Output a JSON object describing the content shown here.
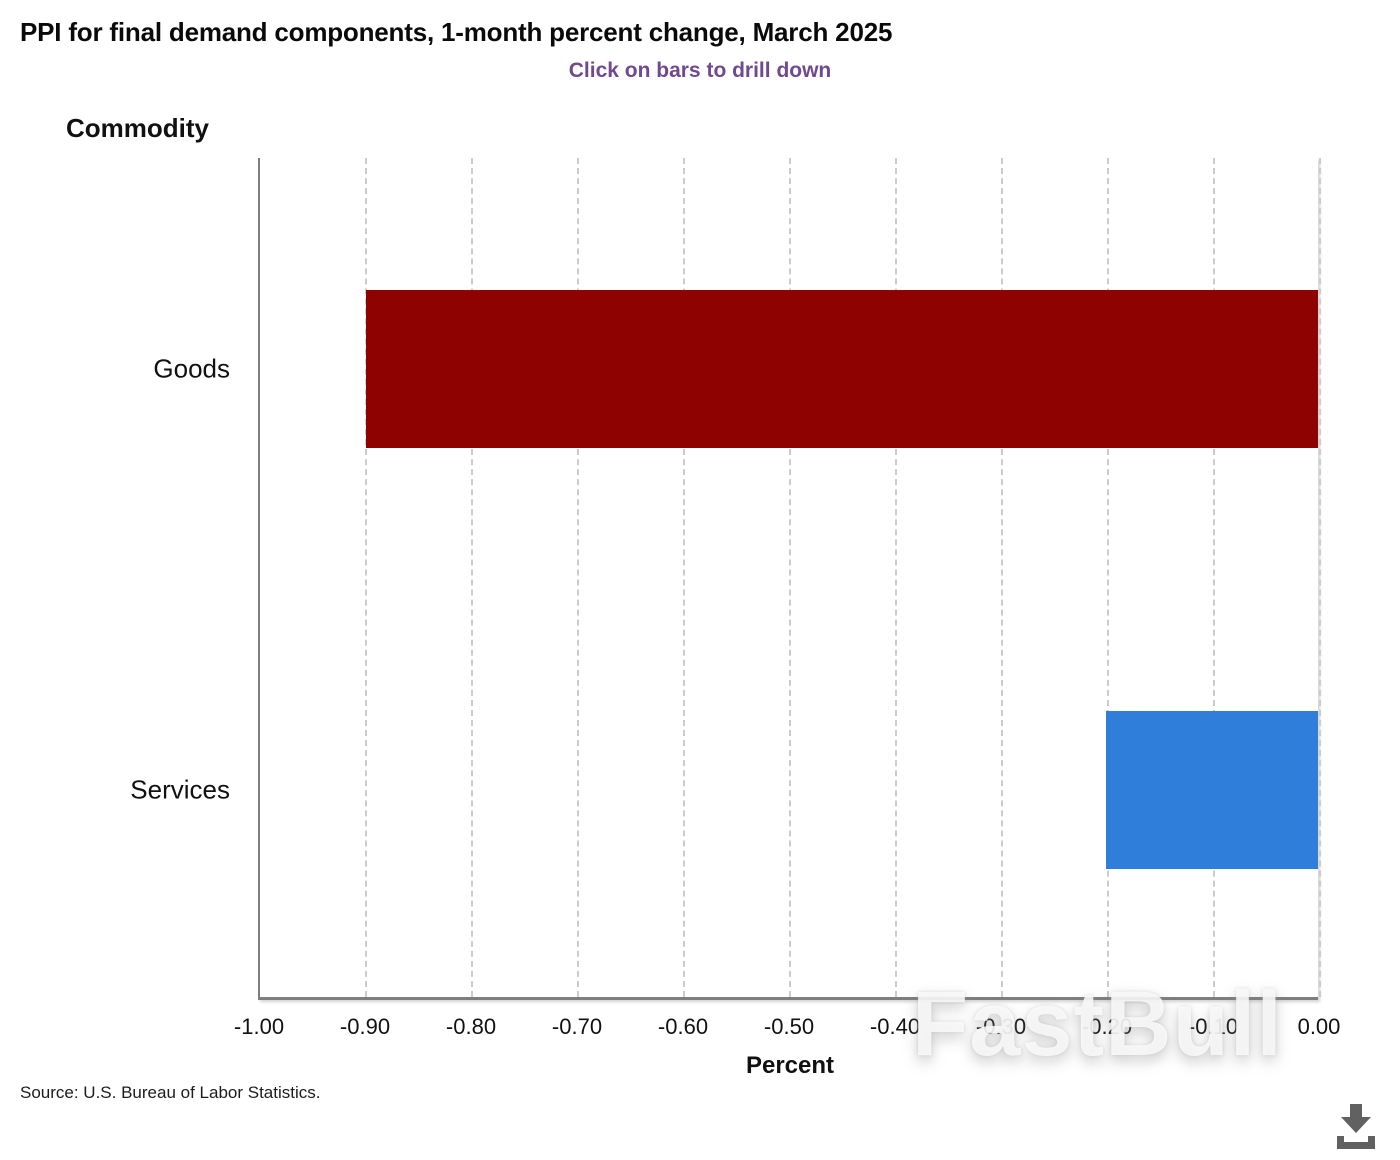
{
  "chart_data": {
    "type": "bar",
    "orientation": "horizontal",
    "title": "PPI for final demand components, 1-month percent change, March 2025",
    "subtitle": "Click on bars to drill down",
    "ylabel": "Commodity",
    "xlabel": "Percent",
    "categories": [
      "Goods",
      "Services"
    ],
    "values": [
      -0.9,
      -0.2
    ],
    "bar_colors": [
      "#8e0202",
      "#2f7ed9"
    ],
    "xlim": [
      -1.0,
      0.0
    ],
    "xtick_labels": [
      "-1.00",
      "-0.90",
      "-0.80",
      "-0.70",
      "-0.60",
      "-0.50",
      "-0.40",
      "-0.30",
      "-0.20",
      "-0.10",
      "0.00"
    ],
    "grid": "vertical-dashed",
    "legend_position": "none"
  },
  "colors": {
    "subtitle_text": "#71498f",
    "goods_bar": "#8e0202",
    "services_bar": "#2f7ed9",
    "axis_line": "#7e7e7e",
    "gridline": "#cccccc",
    "download_icon": "#616161"
  },
  "footer": {
    "source": "Source: U.S. Bureau of Labor Statistics."
  },
  "watermark": {
    "text": "FastBull"
  },
  "icons": {
    "download": "download-icon"
  }
}
